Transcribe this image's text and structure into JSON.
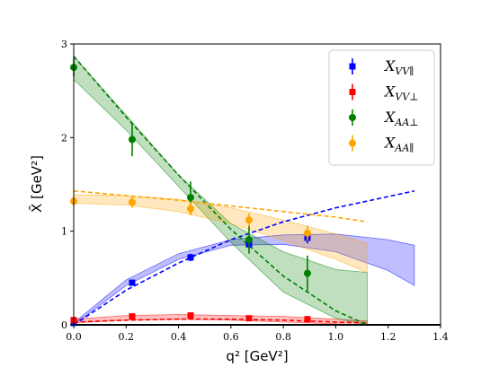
{
  "chart_data": {
    "type": "scatter",
    "title": "",
    "xlabel": "q² [GeV²]",
    "ylabel": "X̄ [GeV²]",
    "xlim": [
      0.0,
      1.4
    ],
    "ylim": [
      0,
      3
    ],
    "xticks": [
      "0.0",
      "0.2",
      "0.4",
      "0.6",
      "0.8",
      "1.0",
      "1.2",
      "1.4"
    ],
    "yticks": [
      "0",
      "1",
      "2",
      "3"
    ],
    "grid": false,
    "legend_position": "top-right",
    "series": [
      {
        "name": "X_VV∥",
        "name_main": "X",
        "name_sub": "VV∥",
        "color": "#0000ff",
        "marker": "square",
        "points": [
          {
            "x": 0.0,
            "y": 0.02,
            "err": 0.02
          },
          {
            "x": 0.223,
            "y": 0.45,
            "err": 0.03
          },
          {
            "x": 0.446,
            "y": 0.72,
            "err": 0.04
          },
          {
            "x": 0.669,
            "y": 0.86,
            "err": 0.05
          },
          {
            "x": 0.892,
            "y": 0.93,
            "err": 0.06
          }
        ],
        "fit_dashed": {
          "x": [
            0.0,
            0.2,
            0.4,
            0.6,
            0.8,
            1.0,
            1.2,
            1.3
          ],
          "y": [
            0.0,
            0.37,
            0.66,
            0.91,
            1.1,
            1.25,
            1.37,
            1.43
          ]
        },
        "band": {
          "x": [
            0.0,
            0.2,
            0.4,
            0.6,
            0.8,
            1.0,
            1.2,
            1.3
          ],
          "lower": [
            0.0,
            0.42,
            0.7,
            0.85,
            0.86,
            0.78,
            0.58,
            0.42
          ],
          "upper": [
            0.02,
            0.48,
            0.76,
            0.91,
            0.96,
            0.97,
            0.91,
            0.85
          ]
        }
      },
      {
        "name": "X_VV⊥",
        "name_main": "X",
        "name_sub": "VV⊥",
        "color": "#ff0000",
        "marker": "square",
        "points": [
          {
            "x": 0.0,
            "y": 0.05,
            "err": 0.02
          },
          {
            "x": 0.223,
            "y": 0.09,
            "err": 0.02
          },
          {
            "x": 0.446,
            "y": 0.1,
            "err": 0.02
          },
          {
            "x": 0.669,
            "y": 0.07,
            "err": 0.02
          },
          {
            "x": 0.892,
            "y": 0.06,
            "err": 0.02
          }
        ],
        "fit_dashed": {
          "x": [
            0.0,
            0.2,
            0.4,
            0.6,
            0.8,
            1.0,
            1.12
          ],
          "y": [
            0.03,
            0.05,
            0.06,
            0.06,
            0.05,
            0.03,
            0.02
          ]
        },
        "band": {
          "x": [
            0.0,
            0.2,
            0.4,
            0.6,
            0.8,
            1.0,
            1.12
          ],
          "lower": [
            0.02,
            0.05,
            0.06,
            0.05,
            0.03,
            0.01,
            0.0
          ],
          "upper": [
            0.06,
            0.1,
            0.11,
            0.1,
            0.09,
            0.06,
            0.04
          ]
        }
      },
      {
        "name": "X_AA⊥",
        "name_main": "X",
        "name_sub": "AA⊥",
        "color": "#008000",
        "marker": "circle",
        "points": [
          {
            "x": 0.0,
            "y": 2.75,
            "err": 0.1
          },
          {
            "x": 0.223,
            "y": 1.98,
            "err": 0.18
          },
          {
            "x": 0.446,
            "y": 1.36,
            "err": 0.17
          },
          {
            "x": 0.669,
            "y": 0.91,
            "err": 0.15
          },
          {
            "x": 0.892,
            "y": 0.55,
            "err": 0.19
          }
        ],
        "fit_dashed": {
          "x": [
            0.0,
            0.2,
            0.4,
            0.6,
            0.8,
            1.0,
            1.12
          ],
          "y": [
            2.87,
            2.22,
            1.6,
            1.02,
            0.52,
            0.15,
            0.0
          ]
        },
        "band": {
          "x": [
            0.0,
            0.2,
            0.4,
            0.6,
            0.8,
            1.0,
            1.12
          ],
          "lower": [
            2.62,
            2.08,
            1.48,
            0.88,
            0.35,
            0.07,
            0.0
          ],
          "upper": [
            2.87,
            2.24,
            1.6,
            1.08,
            0.78,
            0.59,
            0.56
          ]
        }
      },
      {
        "name": "X_AA∥",
        "name_main": "X",
        "name_sub": "AA∥",
        "color": "#ffa500",
        "marker": "circle",
        "points": [
          {
            "x": 0.0,
            "y": 1.32,
            "err": 0.05
          },
          {
            "x": 0.223,
            "y": 1.31,
            "err": 0.06
          },
          {
            "x": 0.446,
            "y": 1.24,
            "err": 0.07
          },
          {
            "x": 0.669,
            "y": 1.12,
            "err": 0.07
          },
          {
            "x": 0.892,
            "y": 0.98,
            "err": 0.08
          }
        ],
        "fit_dashed": {
          "x": [
            0.0,
            0.2,
            0.4,
            0.6,
            0.8,
            1.0,
            1.12
          ],
          "y": [
            1.43,
            1.38,
            1.33,
            1.27,
            1.21,
            1.15,
            1.1
          ]
        },
        "band": {
          "x": [
            0.0,
            0.2,
            0.4,
            0.6,
            0.8,
            1.0,
            1.12
          ],
          "lower": [
            1.3,
            1.28,
            1.21,
            1.08,
            0.9,
            0.7,
            0.56
          ],
          "upper": [
            1.39,
            1.38,
            1.34,
            1.25,
            1.12,
            0.97,
            0.87
          ]
        }
      }
    ]
  }
}
